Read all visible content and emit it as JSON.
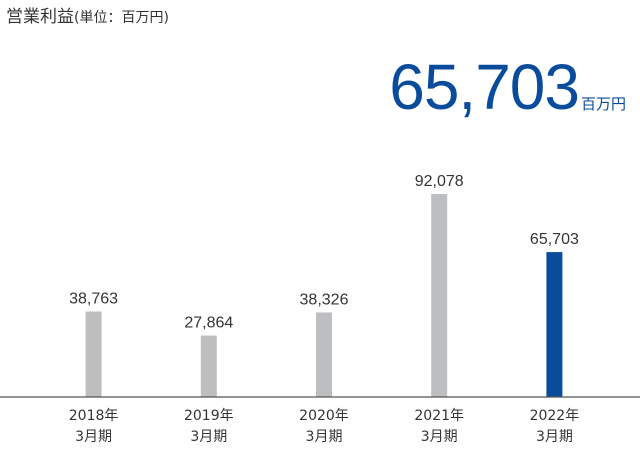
{
  "title": {
    "main": "営業利益",
    "unit": "(単位：百万円)"
  },
  "headline": {
    "value": "65,703",
    "unit": "百万円"
  },
  "colors": {
    "bar_default": "#bdbec0",
    "bar_highlight": "#0a4c9c",
    "axis": "#555555",
    "text": "#333333",
    "headline": "#0a4c9c"
  },
  "chart_data": {
    "type": "bar",
    "title": "営業利益(単位：百万円)",
    "categories": [
      [
        "2018年",
        "3月期"
      ],
      [
        "2019年",
        "3月期"
      ],
      [
        "2020年",
        "3月期"
      ],
      [
        "2021年",
        "3月期"
      ],
      [
        "2022年",
        "3月期"
      ]
    ],
    "values": [
      38763,
      27864,
      38326,
      92078,
      65703
    ],
    "data_labels": [
      "38,763",
      "27,864",
      "38,326",
      "92,078",
      "65,703"
    ],
    "highlight_index": 4,
    "xlabel": "",
    "ylabel": "",
    "ylim": [
      0,
      100000
    ],
    "grid": false,
    "legend": "none"
  }
}
